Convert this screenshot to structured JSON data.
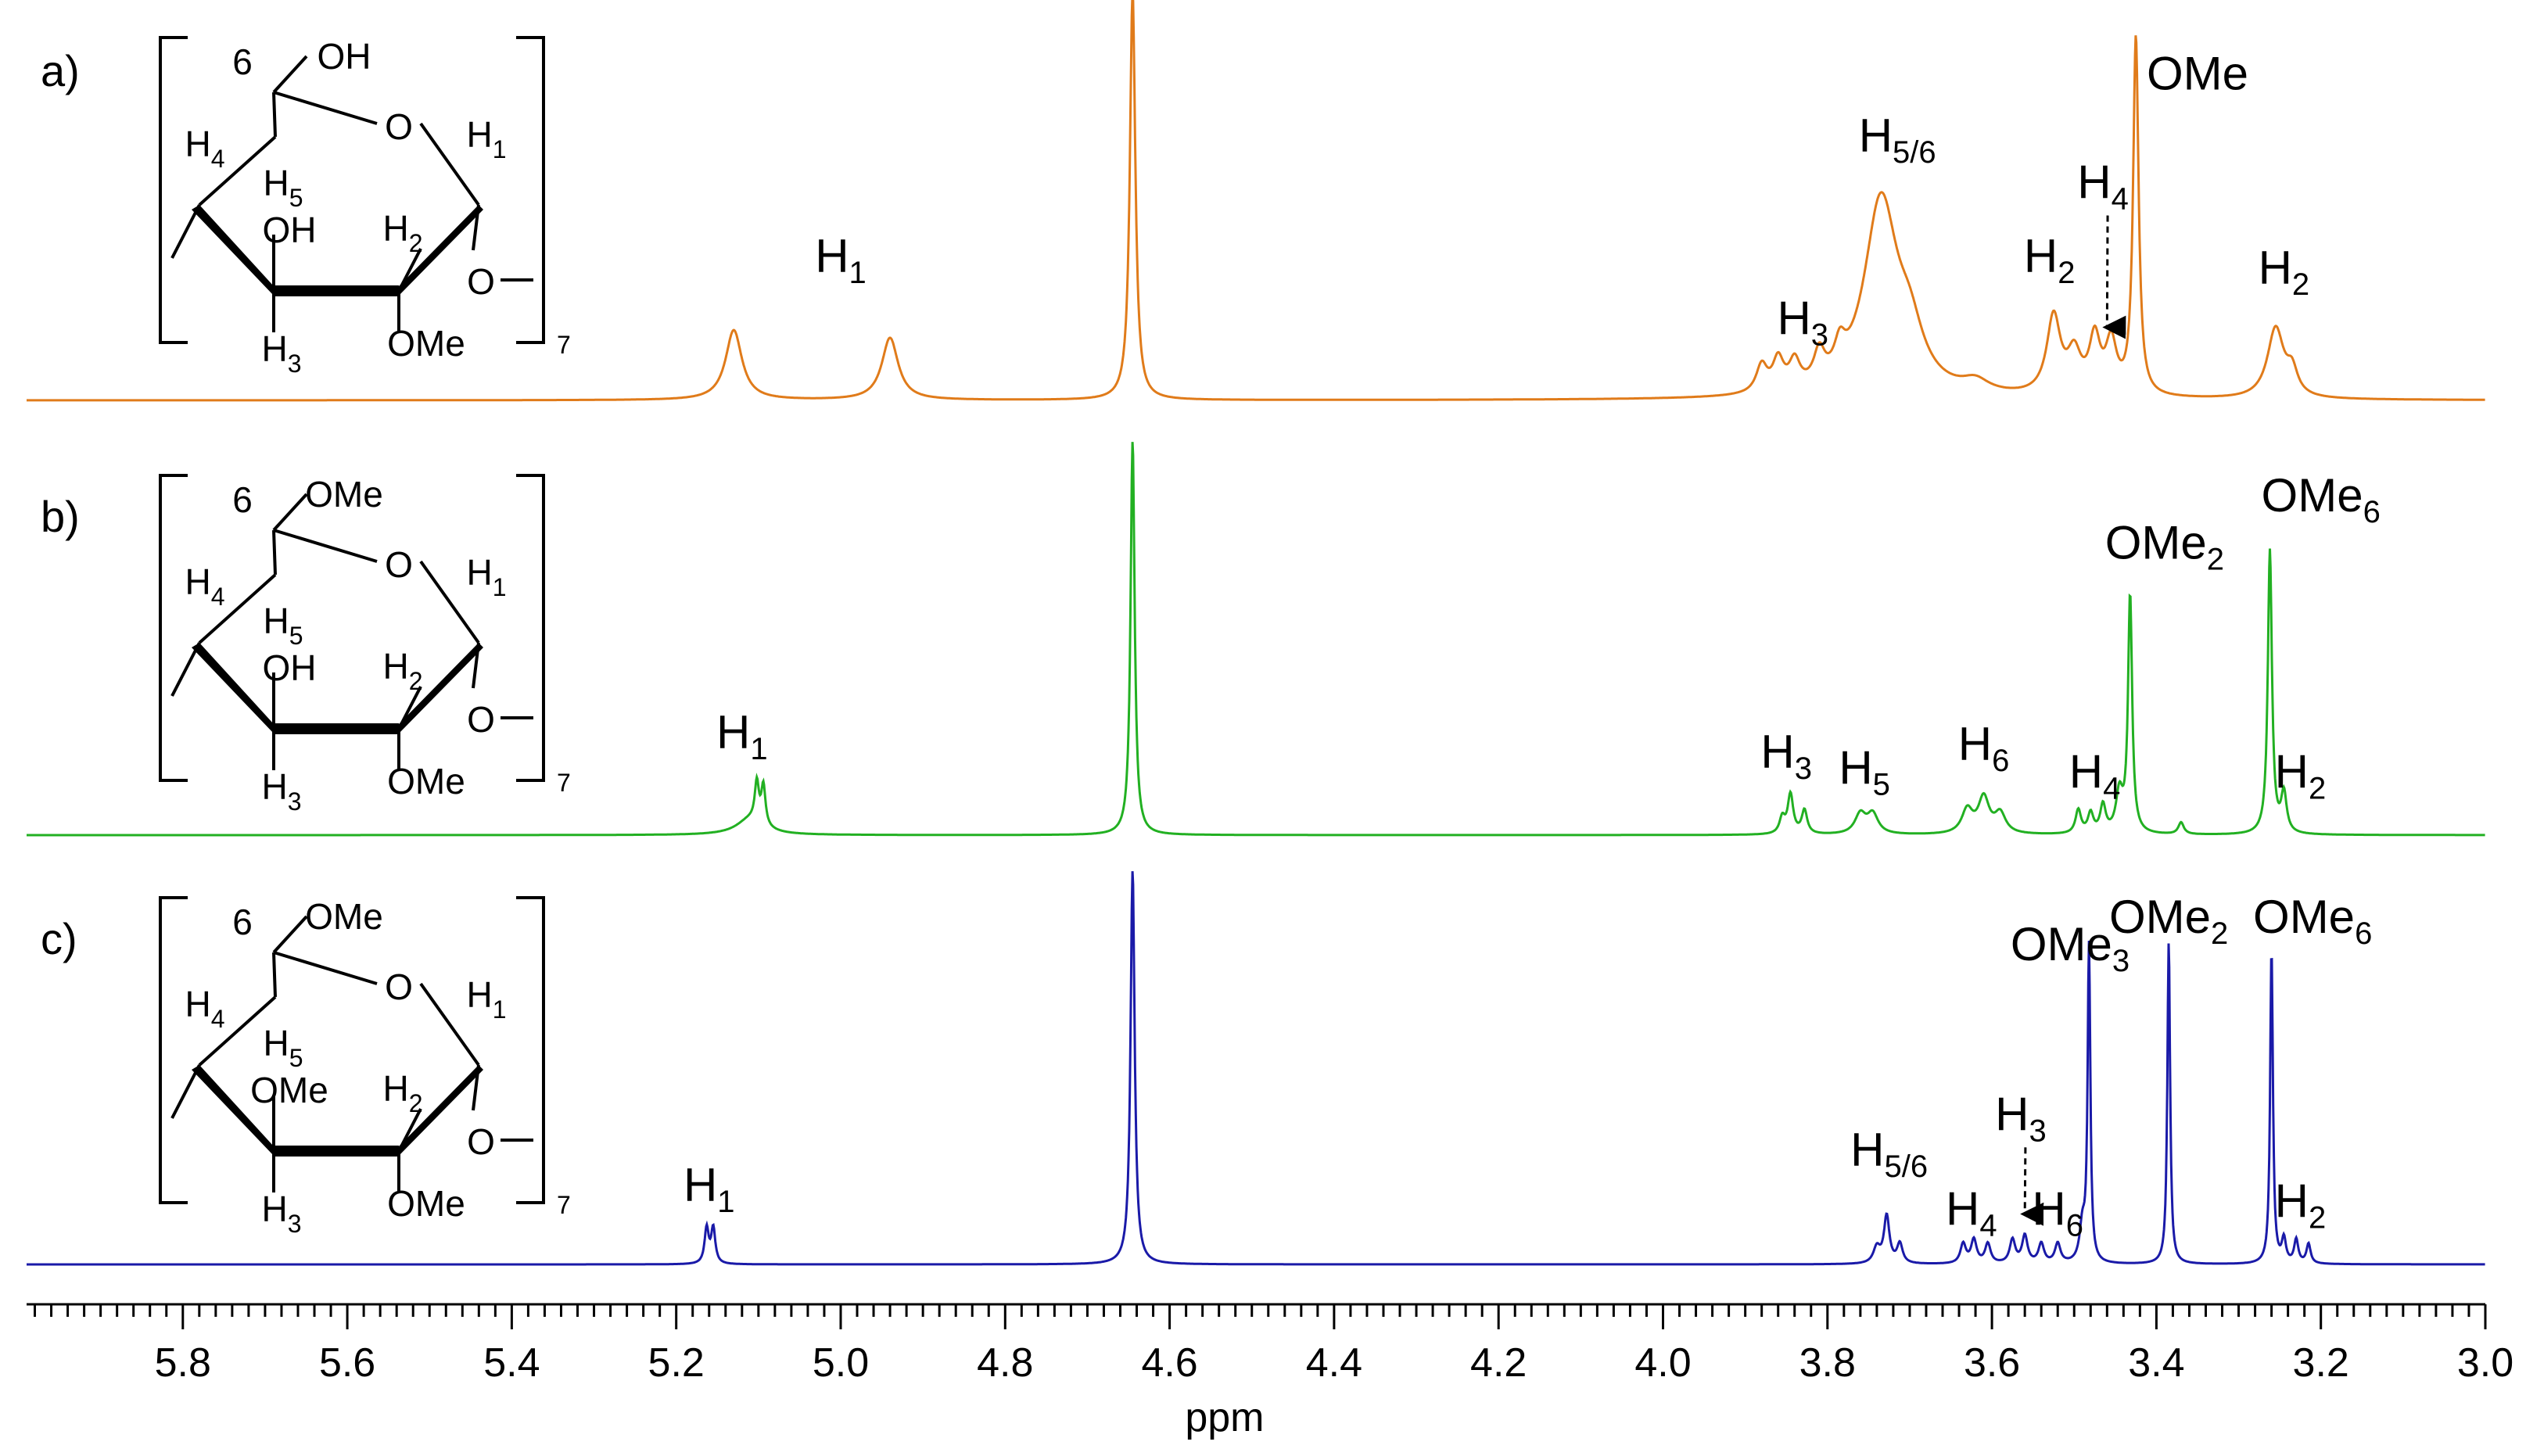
{
  "chart_data": {
    "type": "line",
    "xlabel": "ppm",
    "xlim": [
      5.99,
      3.0
    ],
    "x_reversed": true,
    "x_ticks": [
      "5.8",
      "5.6",
      "5.4",
      "5.2",
      "5.0",
      "4.8",
      "4.6",
      "4.4",
      "4.2",
      "4.0",
      "3.8",
      "3.6",
      "3.4",
      "3.2",
      "3.0"
    ],
    "grid": false,
    "legend": "none",
    "panels": [
      {
        "label": "a)",
        "color": "#e07b1a",
        "molecule": {
          "o6": "OH",
          "o3": "OH",
          "o2": "OMe",
          "ring_o": "O",
          "gly_o": "O",
          "repeat": "7",
          "c6": "6"
        },
        "peaks": [
          {
            "ppm": 5.13,
            "height": 0.18,
            "width": 0.012
          },
          {
            "ppm": 4.94,
            "height": 0.16,
            "width": 0.012
          },
          {
            "ppm": 4.645,
            "height": 1.05,
            "width": 0.004
          },
          {
            "ppm": 3.88,
            "height": 0.07,
            "width": 0.008
          },
          {
            "ppm": 3.86,
            "height": 0.08,
            "width": 0.008
          },
          {
            "ppm": 3.84,
            "height": 0.07,
            "width": 0.008
          },
          {
            "ppm": 3.81,
            "height": 0.08,
            "width": 0.008
          },
          {
            "ppm": 3.785,
            "height": 0.07,
            "width": 0.008
          },
          {
            "ppm": 3.735,
            "height": 0.5,
            "width": 0.025
          },
          {
            "ppm": 3.7,
            "height": 0.12,
            "width": 0.02
          },
          {
            "ppm": 3.62,
            "height": 0.03,
            "width": 0.02
          },
          {
            "ppm": 3.525,
            "height": 0.2,
            "width": 0.01
          },
          {
            "ppm": 3.5,
            "height": 0.1,
            "width": 0.01
          },
          {
            "ppm": 3.475,
            "height": 0.14,
            "width": 0.008
          },
          {
            "ppm": 3.455,
            "height": 0.13,
            "width": 0.008
          },
          {
            "ppm": 3.425,
            "height": 0.92,
            "width": 0.004
          },
          {
            "ppm": 3.255,
            "height": 0.18,
            "width": 0.012
          },
          {
            "ppm": 3.235,
            "height": 0.06,
            "width": 0.008
          }
        ],
        "labels": [
          {
            "ppm": 5.0,
            "y": 0.33,
            "main": "H",
            "sub": "1"
          },
          {
            "ppm": 3.83,
            "y": 0.17,
            "main": "H",
            "sub": "3"
          },
          {
            "ppm": 3.715,
            "y": 0.64,
            "main": "H",
            "sub": "5/6"
          },
          {
            "ppm": 3.53,
            "y": 0.33,
            "main": "H",
            "sub": "2"
          },
          {
            "ppm": 3.465,
            "y": 0.52,
            "main": "H",
            "sub": "4",
            "arrow_to": [
              3.46,
              0.16
            ]
          },
          {
            "ppm": 3.35,
            "y": 0.8,
            "main": "OMe",
            "sub": ""
          },
          {
            "ppm": 3.245,
            "y": 0.3,
            "main": "H",
            "sub": "2"
          }
        ]
      },
      {
        "label": "b)",
        "color": "#22b022",
        "molecule": {
          "o6": "OMe",
          "o3": "OH",
          "o2": "OMe",
          "ring_o": "O",
          "gly_o": "O",
          "repeat": "7",
          "c6": "6"
        },
        "peaks": [
          {
            "ppm": 5.11,
            "height": 0.04,
            "width": 0.02
          },
          {
            "ppm": 5.102,
            "height": 0.1,
            "width": 0.003
          },
          {
            "ppm": 5.094,
            "height": 0.1,
            "width": 0.003
          },
          {
            "ppm": 4.645,
            "height": 1.0,
            "width": 0.003
          },
          {
            "ppm": 3.855,
            "height": 0.04,
            "width": 0.004
          },
          {
            "ppm": 3.845,
            "height": 0.1,
            "width": 0.004
          },
          {
            "ppm": 3.828,
            "height": 0.06,
            "width": 0.004
          },
          {
            "ppm": 3.76,
            "height": 0.05,
            "width": 0.008
          },
          {
            "ppm": 3.745,
            "height": 0.05,
            "width": 0.008
          },
          {
            "ppm": 3.63,
            "height": 0.06,
            "width": 0.008
          },
          {
            "ppm": 3.61,
            "height": 0.09,
            "width": 0.008
          },
          {
            "ppm": 3.59,
            "height": 0.05,
            "width": 0.008
          },
          {
            "ppm": 3.495,
            "height": 0.06,
            "width": 0.004
          },
          {
            "ppm": 3.48,
            "height": 0.05,
            "width": 0.004
          },
          {
            "ppm": 3.465,
            "height": 0.07,
            "width": 0.004
          },
          {
            "ppm": 3.445,
            "height": 0.1,
            "width": 0.005
          },
          {
            "ppm": 3.432,
            "height": 0.6,
            "width": 0.003
          },
          {
            "ppm": 3.37,
            "height": 0.03,
            "width": 0.004
          },
          {
            "ppm": 3.262,
            "height": 0.72,
            "width": 0.003
          },
          {
            "ppm": 3.245,
            "height": 0.1,
            "width": 0.004
          }
        ],
        "labels": [
          {
            "ppm": 5.12,
            "y": 0.22,
            "main": "H",
            "sub": "1"
          },
          {
            "ppm": 3.85,
            "y": 0.17,
            "main": "H",
            "sub": "3"
          },
          {
            "ppm": 3.755,
            "y": 0.13,
            "main": "H",
            "sub": "5"
          },
          {
            "ppm": 3.61,
            "y": 0.19,
            "main": "H",
            "sub": "6"
          },
          {
            "ppm": 3.475,
            "y": 0.12,
            "main": "H",
            "sub": "4"
          },
          {
            "ppm": 3.39,
            "y": 0.7,
            "main": "OMe",
            "sub": "2"
          },
          {
            "ppm": 3.2,
            "y": 0.82,
            "main": "OMe",
            "sub": "6"
          },
          {
            "ppm": 3.225,
            "y": 0.12,
            "main": "H",
            "sub": "2"
          }
        ]
      },
      {
        "label": "c)",
        "color": "#1a1aa8",
        "molecule": {
          "o6": "OMe",
          "o3": "OMe",
          "o2": "OMe",
          "ring_o": "O",
          "gly_o": "O",
          "repeat": "7",
          "c6": "6"
        },
        "peaks": [
          {
            "ppm": 5.163,
            "height": 0.09,
            "width": 0.003
          },
          {
            "ppm": 5.155,
            "height": 0.09,
            "width": 0.003
          },
          {
            "ppm": 4.645,
            "height": 1.0,
            "width": 0.003
          },
          {
            "ppm": 3.74,
            "height": 0.04,
            "width": 0.005
          },
          {
            "ppm": 3.728,
            "height": 0.12,
            "width": 0.004
          },
          {
            "ppm": 3.712,
            "height": 0.05,
            "width": 0.004
          },
          {
            "ppm": 3.635,
            "height": 0.05,
            "width": 0.004
          },
          {
            "ppm": 3.622,
            "height": 0.06,
            "width": 0.004
          },
          {
            "ppm": 3.605,
            "height": 0.05,
            "width": 0.004
          },
          {
            "ppm": 3.575,
            "height": 0.06,
            "width": 0.004
          },
          {
            "ppm": 3.56,
            "height": 0.07,
            "width": 0.004
          },
          {
            "ppm": 3.54,
            "height": 0.05,
            "width": 0.004
          },
          {
            "ppm": 3.52,
            "height": 0.05,
            "width": 0.004
          },
          {
            "ppm": 3.49,
            "height": 0.09,
            "width": 0.004
          },
          {
            "ppm": 3.482,
            "height": 0.8,
            "width": 0.002
          },
          {
            "ppm": 3.385,
            "height": 0.82,
            "width": 0.002
          },
          {
            "ppm": 3.26,
            "height": 0.8,
            "width": 0.002
          },
          {
            "ppm": 3.245,
            "height": 0.06,
            "width": 0.003
          },
          {
            "ppm": 3.23,
            "height": 0.06,
            "width": 0.003
          },
          {
            "ppm": 3.215,
            "height": 0.05,
            "width": 0.003
          }
        ],
        "labels": [
          {
            "ppm": 5.16,
            "y": 0.16,
            "main": "H",
            "sub": "1"
          },
          {
            "ppm": 3.725,
            "y": 0.25,
            "main": "H",
            "sub": "5/6"
          },
          {
            "ppm": 3.625,
            "y": 0.1,
            "main": "H",
            "sub": "4"
          },
          {
            "ppm": 3.565,
            "y": 0.34,
            "main": "H",
            "sub": "3",
            "arrow_to": [
              3.56,
              0.1
            ]
          },
          {
            "ppm": 3.52,
            "y": 0.1,
            "main": "H",
            "sub": "6"
          },
          {
            "ppm": 3.505,
            "y": 0.77,
            "main": "OMe",
            "sub": "3"
          },
          {
            "ppm": 3.385,
            "y": 0.84,
            "main": "OMe",
            "sub": "2"
          },
          {
            "ppm": 3.21,
            "y": 0.84,
            "main": "OMe",
            "sub": "6"
          },
          {
            "ppm": 3.225,
            "y": 0.12,
            "main": "H",
            "sub": "2"
          }
        ]
      }
    ]
  },
  "h_labels": {
    "h1": "H",
    "h2": "H",
    "h3": "H",
    "h4": "H",
    "h5": "H",
    "s1": "1",
    "s2": "2",
    "s3": "3",
    "s4": "4",
    "s5": "5"
  }
}
